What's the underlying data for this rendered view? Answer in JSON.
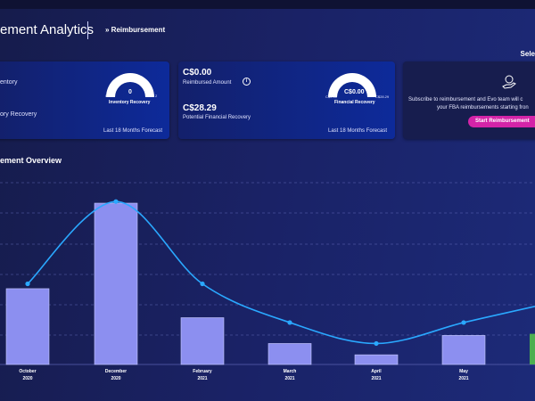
{
  "header": {
    "title": "ement Analytics",
    "breadcrumb": "» Reimbursement",
    "select_label": "Sele"
  },
  "cards": {
    "inventory": {
      "line1": "entory",
      "line2": "ory Recovery",
      "gauge_min": "0",
      "gauge_value": "0",
      "gauge_max": "2",
      "gauge_title": "Inventory Recovery",
      "forecast": "Last 18 Months Forecast"
    },
    "financial": {
      "reimbursed_value": "C$0.00",
      "reimbursed_label": "Reimbursed Amount",
      "potential_value": "C$28.29",
      "potential_label": "Potential Financial Recovery",
      "gauge_min": "C$0.00",
      "gauge_value": "C$0.00",
      "gauge_max": "C$28.29",
      "gauge_title": "Financial Recovery",
      "forecast": "Last 18 Months Forecast",
      "info_icon": "i"
    },
    "subscribe": {
      "line1": "Subscribe to reimbursement and Evo team will c",
      "line2": "your FBA reimbursements starting fron",
      "button": "Start Reimbursement",
      "icon": "hand-coin-icon"
    }
  },
  "overview": {
    "title": "ement Overview"
  },
  "colors": {
    "bar": "#8c8ff0",
    "bar_green": "#4caf50",
    "line": "#2aa8ff",
    "accent": "#d424a8"
  },
  "chart_data": {
    "type": "bar",
    "categories": [
      "October 2020",
      "December 2020",
      "February 2021",
      "March 2021",
      "April 2021",
      "May 2021"
    ],
    "x_labels": [
      {
        "month": "October",
        "year": "2020"
      },
      {
        "month": "December",
        "year": "2020"
      },
      {
        "month": "February",
        "year": "2021"
      },
      {
        "month": "March",
        "year": "2021"
      },
      {
        "month": "April",
        "year": "2021"
      },
      {
        "month": "May",
        "year": "2021"
      }
    ],
    "bars": [
      0.47,
      1.0,
      0.29,
      0.13,
      0.06,
      0.18
    ],
    "line": [
      0.5,
      1.01,
      0.5,
      0.26,
      0.13,
      0.26
    ],
    "partial_green_bar": 0.19,
    "grid": true
  }
}
